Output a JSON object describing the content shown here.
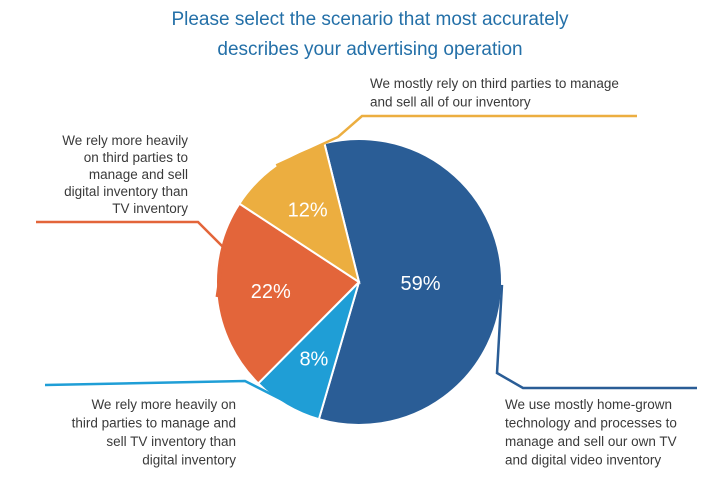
{
  "chart_data": {
    "type": "pie",
    "title": "Please select the scenario that most accurately describes your advertising operation",
    "title_lines": [
      "Please select the scenario that most accurately",
      "describes your advertising operation"
    ],
    "legend": "none (callout labels)",
    "slices": [
      {
        "value": 59,
        "label": "59%",
        "color": "#2a5d96",
        "category": "We use mostly home-grown technology and processes to manage and sell our own TV and digital video inventory",
        "category_lines": [
          "We use mostly home-grown",
          "technology and processes to",
          "manage and sell our own TV",
          "and digital video inventory"
        ]
      },
      {
        "value": 8,
        "label": "8%",
        "color": "#1f9ed6",
        "category": "We rely more heavily on third parties to manage and sell TV inventory than digital inventory",
        "category_lines": [
          "We rely more heavily on",
          "third parties to manage and",
          "sell TV inventory than",
          "digital inventory"
        ]
      },
      {
        "value": 22,
        "label": "22%",
        "color": "#e3653a",
        "category": "We rely more heavily on third parties to manage and sell digital inventory than TV inventory",
        "category_lines": [
          "We rely more heavily",
          "on third parties to",
          "manage and sell",
          "digital inventory than",
          "TV inventory"
        ]
      },
      {
        "value": 12,
        "label": "12%",
        "color": "#ecae40",
        "category": "We mostly rely on third parties to manage and sell all of our inventory",
        "category_lines": [
          "We mostly rely on third parties to manage",
          "and sell all of our inventory"
        ]
      }
    ]
  }
}
